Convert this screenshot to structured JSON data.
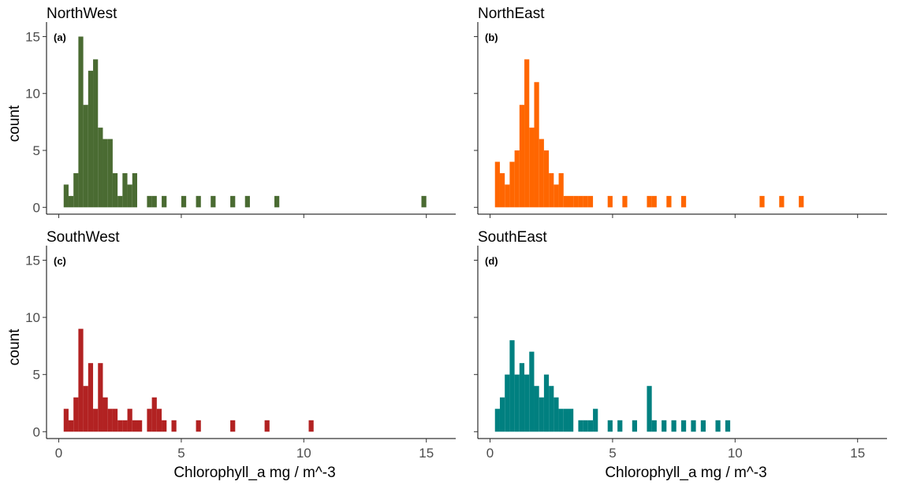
{
  "chart_data": {
    "type": "bar",
    "subtype": "histogram-facets",
    "xlabel": "Chlorophyll_a mg / m^-3",
    "ylabel": "count",
    "xlim": [
      -0.5,
      16.2
    ],
    "ylim": [
      -0.6,
      16.0
    ],
    "x_ticks": [
      0,
      5,
      10,
      15
    ],
    "y_ticks": [
      0,
      5,
      10,
      15
    ],
    "bin_width": 0.2,
    "grid": false,
    "panels": [
      {
        "title": "NorthWest",
        "tag": "(a)",
        "color": "#4a6b32",
        "bins": [
          [
            0.2,
            2
          ],
          [
            0.4,
            1
          ],
          [
            0.6,
            3
          ],
          [
            0.8,
            15
          ],
          [
            1.0,
            9
          ],
          [
            1.2,
            12
          ],
          [
            1.4,
            13
          ],
          [
            1.6,
            7
          ],
          [
            1.8,
            6
          ],
          [
            2.0,
            6
          ],
          [
            2.2,
            3
          ],
          [
            2.4,
            1
          ],
          [
            2.6,
            3
          ],
          [
            2.8,
            2
          ],
          [
            3.0,
            3
          ],
          [
            3.2,
            0
          ],
          [
            3.4,
            0
          ],
          [
            3.6,
            1
          ],
          [
            3.8,
            1
          ],
          [
            4.2,
            1
          ],
          [
            5.0,
            1
          ],
          [
            5.6,
            1
          ],
          [
            6.2,
            1
          ],
          [
            7.0,
            1
          ],
          [
            7.6,
            1
          ],
          [
            8.8,
            1
          ],
          [
            14.8,
            1
          ]
        ]
      },
      {
        "title": "NorthEast",
        "tag": "(b)",
        "color": "#ff6600",
        "bins": [
          [
            0.2,
            4
          ],
          [
            0.4,
            3
          ],
          [
            0.6,
            2
          ],
          [
            0.8,
            4
          ],
          [
            1.0,
            5
          ],
          [
            1.2,
            9
          ],
          [
            1.4,
            13
          ],
          [
            1.6,
            7
          ],
          [
            1.8,
            11
          ],
          [
            2.0,
            6
          ],
          [
            2.2,
            5
          ],
          [
            2.4,
            3
          ],
          [
            2.6,
            2
          ],
          [
            2.8,
            3
          ],
          [
            3.0,
            1
          ],
          [
            3.2,
            1
          ],
          [
            3.4,
            1
          ],
          [
            3.6,
            1
          ],
          [
            3.8,
            1
          ],
          [
            4.0,
            1
          ],
          [
            4.8,
            1
          ],
          [
            5.4,
            1
          ],
          [
            6.4,
            1
          ],
          [
            6.6,
            1
          ],
          [
            7.2,
            1
          ],
          [
            7.8,
            1
          ],
          [
            11.0,
            1
          ],
          [
            11.8,
            1
          ],
          [
            12.6,
            1
          ]
        ]
      },
      {
        "title": "SouthWest",
        "tag": "(c)",
        "color": "#b22222",
        "bins": [
          [
            0.2,
            2
          ],
          [
            0.4,
            1
          ],
          [
            0.6,
            3
          ],
          [
            0.8,
            9
          ],
          [
            1.0,
            4
          ],
          [
            1.2,
            6
          ],
          [
            1.4,
            2
          ],
          [
            1.6,
            6
          ],
          [
            1.8,
            3
          ],
          [
            2.0,
            2
          ],
          [
            2.2,
            2
          ],
          [
            2.4,
            1
          ],
          [
            2.6,
            1
          ],
          [
            2.8,
            2
          ],
          [
            3.0,
            1
          ],
          [
            3.2,
            1
          ],
          [
            3.4,
            0
          ],
          [
            3.6,
            2
          ],
          [
            3.8,
            3
          ],
          [
            4.0,
            2
          ],
          [
            4.2,
            1
          ],
          [
            4.4,
            0
          ],
          [
            4.6,
            1
          ],
          [
            5.6,
            1
          ],
          [
            7.0,
            1
          ],
          [
            8.4,
            1
          ],
          [
            10.2,
            1
          ]
        ]
      },
      {
        "title": "SouthEast",
        "tag": "(d)",
        "color": "#008080",
        "bins": [
          [
            0.2,
            2
          ],
          [
            0.4,
            3
          ],
          [
            0.6,
            5
          ],
          [
            0.8,
            8
          ],
          [
            1.0,
            5
          ],
          [
            1.2,
            6
          ],
          [
            1.4,
            5
          ],
          [
            1.6,
            7
          ],
          [
            1.8,
            4
          ],
          [
            2.0,
            3
          ],
          [
            2.2,
            5
          ],
          [
            2.4,
            4
          ],
          [
            2.6,
            3
          ],
          [
            2.8,
            2
          ],
          [
            3.0,
            2
          ],
          [
            3.2,
            2
          ],
          [
            3.4,
            0
          ],
          [
            3.6,
            1
          ],
          [
            3.8,
            1
          ],
          [
            4.0,
            1
          ],
          [
            4.2,
            2
          ],
          [
            4.8,
            1
          ],
          [
            5.2,
            1
          ],
          [
            5.8,
            1
          ],
          [
            6.4,
            4
          ],
          [
            6.6,
            1
          ],
          [
            7.0,
            1
          ],
          [
            7.4,
            1
          ],
          [
            7.8,
            1
          ],
          [
            8.2,
            1
          ],
          [
            8.6,
            1
          ],
          [
            9.2,
            1
          ],
          [
            9.6,
            1
          ]
        ]
      }
    ]
  }
}
